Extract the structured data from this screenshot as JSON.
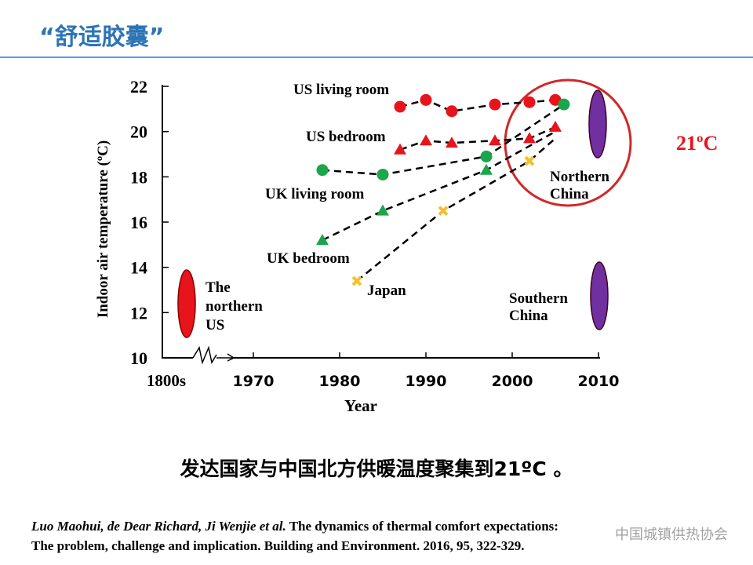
{
  "header": {
    "title": "“舒适胶囊”"
  },
  "caption": "发达国家与中国北方供暖温度聚集到21ºC 。",
  "reference": {
    "authors": "Luo Maohui, de Dear Richard, Ji Wenjie et al.",
    "line1_rest": " The dynamics of thermal comfort expectations:",
    "line2": "The problem, challenge and implication. Building and Environment. 2016, 95, 322-329."
  },
  "watermark": "中国城镇供热协会",
  "chart_data": {
    "type": "scatter",
    "xlabel": "Year",
    "ylabel": "Indoor air temperature (ºC)",
    "xlim": [
      1970,
      2010
    ],
    "ylim": [
      10,
      22
    ],
    "x_ticks": [
      "1800s",
      "1970",
      "1980",
      "1990",
      "2000",
      "2010"
    ],
    "y_ticks": [
      10,
      12,
      14,
      16,
      18,
      20,
      22
    ],
    "series": [
      {
        "name": "US living room",
        "marker": "circle",
        "color": "#e8141b",
        "x": [
          1987,
          1990,
          1993,
          1998,
          2002,
          2005
        ],
        "y": [
          21.1,
          21.4,
          20.9,
          21.2,
          21.3,
          21.4
        ]
      },
      {
        "name": "US bedroom",
        "marker": "triangle",
        "color": "#e8141b",
        "x": [
          1987,
          1990,
          1993,
          1998,
          2002,
          2005
        ],
        "y": [
          19.2,
          19.6,
          19.5,
          19.6,
          19.7,
          20.2
        ]
      },
      {
        "name": "UK living room",
        "marker": "circle",
        "color": "#1aa64a",
        "x": [
          1978,
          1985,
          1997,
          2006
        ],
        "y": [
          18.3,
          18.1,
          18.9,
          21.2
        ]
      },
      {
        "name": "UK bedroom",
        "marker": "triangle",
        "color": "#1aa64a",
        "x": [
          1978,
          1985,
          1997
        ],
        "y": [
          15.2,
          16.5,
          18.3
        ]
      },
      {
        "name": "Japan",
        "marker": "cross",
        "color": "#f2c12e",
        "x": [
          1982,
          1992,
          2002
        ],
        "y": [
          13.4,
          16.5,
          18.7
        ]
      }
    ],
    "annotations": {
      "northern_us": "The northern US",
      "northern_china": "Northern China",
      "southern_china": "Southern China",
      "highlight": "21ºC"
    },
    "colors": {
      "us": "#e8141b",
      "uk": "#1aa64a",
      "japan": "#f2c12e",
      "china": "#7030a0",
      "circle": "#d02828"
    }
  }
}
